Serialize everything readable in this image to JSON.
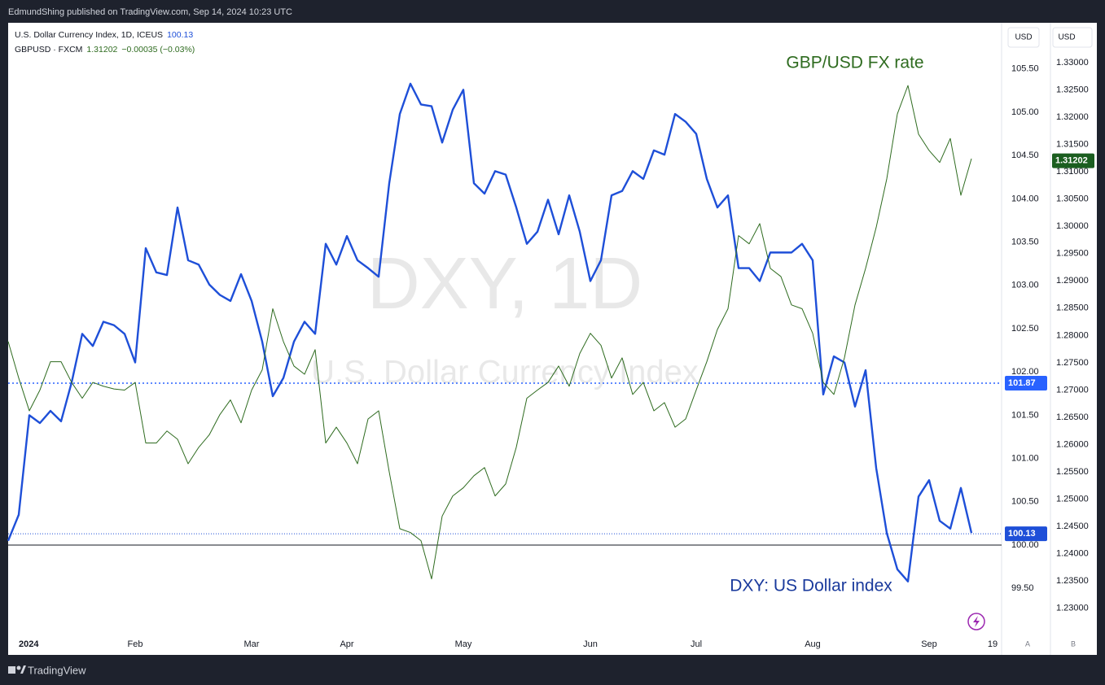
{
  "header": "EdmundShing published on TradingView.com, Sep 14, 2024 10:23 UTC",
  "footer": "TradingView",
  "chart_data": {
    "type": "line",
    "watermark": [
      "DXY, 1D",
      "U.S. Dollar Currency Index"
    ],
    "annotations": [
      "GBP/USD FX rate",
      "DXY: US Dollar index"
    ],
    "currency_labels": [
      "USD",
      "USD"
    ],
    "scale_labels": [
      "A",
      "B"
    ],
    "categories": [
      null,
      "2024",
      null,
      null,
      null,
      null,
      null,
      null,
      null,
      null,
      null,
      null,
      "Feb",
      null,
      null,
      null,
      null,
      null,
      null,
      null,
      null,
      null,
      null,
      "Mar",
      null,
      null,
      null,
      null,
      null,
      null,
      null,
      null,
      "Apr",
      null,
      null,
      null,
      null,
      null,
      null,
      null,
      null,
      null,
      null,
      "May",
      null,
      null,
      null,
      null,
      null,
      null,
      null,
      null,
      null,
      null,
      null,
      "Jun",
      null,
      null,
      null,
      null,
      null,
      null,
      null,
      null,
      null,
      "Jul",
      null,
      null,
      null,
      null,
      null,
      null,
      null,
      null,
      null,
      null,
      "Aug",
      null,
      null,
      null,
      null,
      null,
      null,
      null,
      null,
      null,
      null,
      "Sep",
      null,
      null,
      null,
      null,
      null,
      "19"
    ],
    "series": [
      {
        "name": "U.S. Dollar Currency Index, 1D, ICEUS",
        "last_value": 100.13,
        "color": "#1e4fd8",
        "values": [
          100.05,
          100.35,
          101.5,
          101.41,
          101.55,
          101.43,
          101.88,
          102.44,
          102.3,
          102.58,
          102.54,
          102.44,
          102.11,
          103.43,
          103.15,
          103.12,
          103.9,
          103.29,
          103.24,
          103.01,
          102.89,
          102.82,
          103.13,
          102.82,
          102.35,
          101.72,
          101.93,
          102.35,
          102.58,
          102.44,
          103.48,
          103.24,
          103.57,
          103.29,
          103.2,
          103.1,
          104.18,
          104.98,
          105.33,
          105.09,
          105.07,
          104.65,
          105.03,
          105.26,
          104.18,
          104.06,
          104.32,
          104.28,
          103.9,
          103.48,
          103.62,
          103.99,
          103.59,
          104.04,
          103.62,
          103.05,
          103.29,
          104.04,
          104.09,
          104.32,
          104.23,
          104.56,
          104.51,
          104.98,
          104.89,
          104.75,
          104.23,
          103.9,
          104.04,
          103.2,
          103.2,
          103.05,
          103.38,
          103.38,
          103.38,
          103.48,
          103.29,
          101.74,
          102.18,
          102.11,
          101.6,
          102.02,
          100.89,
          100.14,
          99.72,
          99.58,
          100.56,
          100.75,
          100.28,
          100.19,
          100.66,
          100.14,
          null,
          null
        ]
      },
      {
        "name": "GBPUSD · FXCM",
        "last_value": 1.31202,
        "change": "−0.00035 (−0.03%)",
        "color": "#2e6b1f",
        "axis": "y2",
        "values": [
          1.2789,
          1.2722,
          1.2662,
          1.27,
          1.2752,
          1.2752,
          1.2714,
          1.2685,
          1.2714,
          1.2707,
          1.2702,
          1.27,
          1.2714,
          1.2603,
          1.2603,
          1.2625,
          1.261,
          1.2565,
          1.2595,
          1.2618,
          1.2655,
          1.2682,
          1.264,
          1.27,
          1.2737,
          1.2849,
          1.2789,
          1.2744,
          1.2729,
          1.2774,
          1.2603,
          1.2632,
          1.2603,
          1.2565,
          1.2647,
          1.2662,
          1.255,
          1.2446,
          1.2439,
          1.2424,
          1.2354,
          1.2469,
          1.2506,
          1.2521,
          1.2543,
          1.2558,
          1.2506,
          1.2528,
          1.2595,
          1.2685,
          1.27,
          1.2714,
          1.2744,
          1.2707,
          1.2767,
          1.2804,
          1.2782,
          1.2722,
          1.2759,
          1.2692,
          1.2714,
          1.2662,
          1.2677,
          1.2632,
          1.2647,
          1.27,
          1.2752,
          1.2811,
          1.2849,
          1.2983,
          1.2968,
          1.3005,
          1.2923,
          1.2908,
          1.2856,
          1.2849,
          1.2804,
          1.2714,
          1.2692,
          1.2759,
          1.2856,
          1.2923,
          1.2998,
          1.3087,
          1.3206,
          1.3258,
          1.3169,
          1.3139,
          1.3117,
          1.3161,
          1.3057,
          1.3124,
          null,
          null
        ]
      }
    ],
    "level": 101.87,
    "baseline": 100,
    "ylim": [
      98.985,
      106.015
    ],
    "yticks": [
      {
        "value": 99.5,
        "label": "99.50"
      },
      {
        "value": 100,
        "label": "100.00"
      },
      {
        "value": 100.5,
        "label": "100.50"
      },
      {
        "value": 101,
        "label": "101.00"
      },
      {
        "value": 101.5,
        "label": "101.50"
      },
      {
        "value": 102,
        "label": "102.00"
      },
      {
        "value": 102.5,
        "label": "102.50"
      },
      {
        "value": 103,
        "label": "103.00"
      },
      {
        "value": 103.5,
        "label": "103.50"
      },
      {
        "value": 104,
        "label": "104.00"
      },
      {
        "value": 104.5,
        "label": "104.50"
      },
      {
        "value": 105,
        "label": "105.00"
      },
      {
        "value": 105.5,
        "label": "105.50"
      }
    ],
    "y2lim": [
      1.2255,
      1.337
    ],
    "y2ticks": [
      {
        "value": 1.23,
        "label": "1.23000"
      },
      {
        "value": 1.235,
        "label": "1.23500"
      },
      {
        "value": 1.24,
        "label": "1.24000"
      },
      {
        "value": 1.245,
        "label": "1.24500"
      },
      {
        "value": 1.25,
        "label": "1.25000"
      },
      {
        "value": 1.255,
        "label": "1.25500"
      },
      {
        "value": 1.26,
        "label": "1.26000"
      },
      {
        "value": 1.265,
        "label": "1.26500"
      },
      {
        "value": 1.27,
        "label": "1.27000"
      },
      {
        "value": 1.275,
        "label": "1.27500"
      },
      {
        "value": 1.28,
        "label": "1.28000"
      },
      {
        "value": 1.285,
        "label": "1.28500"
      },
      {
        "value": 1.29,
        "label": "1.29000"
      },
      {
        "value": 1.295,
        "label": "1.29500"
      },
      {
        "value": 1.3,
        "label": "1.30000"
      },
      {
        "value": 1.305,
        "label": "1.30500"
      },
      {
        "value": 1.31,
        "label": "1.31000"
      },
      {
        "value": 1.315,
        "label": "1.31500"
      },
      {
        "value": 1.32,
        "label": "1.32000"
      },
      {
        "value": 1.325,
        "label": "1.32500"
      },
      {
        "value": 1.33,
        "label": "1.33000"
      }
    ],
    "grid": false
  }
}
